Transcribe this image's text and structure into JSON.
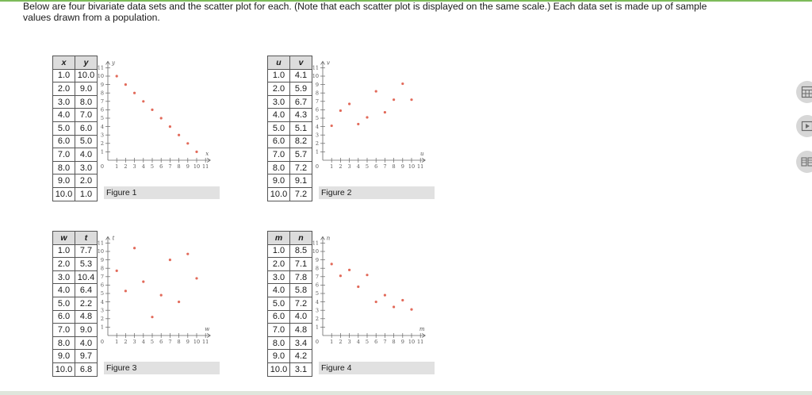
{
  "intro": {
    "line1": "Below are four bivariate data sets and the scatter plot for each. (Note that each scatter plot is displayed on the same scale.) Each data set is made up of sample",
    "line2": "values drawn from a population."
  },
  "colors": {
    "point": "#e26a5a",
    "axis": "#666666",
    "header_bg": "#dcdcdc",
    "caption_bg": "#e1e1e1",
    "accent_bar": "#7dbb5a"
  },
  "tables": [
    {
      "h1": "x",
      "h2": "y",
      "rows": [
        [
          "1.0",
          "10.0"
        ],
        [
          "2.0",
          "9.0"
        ],
        [
          "3.0",
          "8.0"
        ],
        [
          "4.0",
          "7.0"
        ],
        [
          "5.0",
          "6.0"
        ],
        [
          "6.0",
          "5.0"
        ],
        [
          "7.0",
          "4.0"
        ],
        [
          "8.0",
          "3.0"
        ],
        [
          "9.0",
          "2.0"
        ],
        [
          "10.0",
          "1.0"
        ]
      ]
    },
    {
      "h1": "u",
      "h2": "v",
      "rows": [
        [
          "1.0",
          "4.1"
        ],
        [
          "2.0",
          "5.9"
        ],
        [
          "3.0",
          "6.7"
        ],
        [
          "4.0",
          "4.3"
        ],
        [
          "5.0",
          "5.1"
        ],
        [
          "6.0",
          "8.2"
        ],
        [
          "7.0",
          "5.7"
        ],
        [
          "8.0",
          "7.2"
        ],
        [
          "9.0",
          "9.1"
        ],
        [
          "10.0",
          "7.2"
        ]
      ]
    },
    {
      "h1": "w",
      "h2": "t",
      "rows": [
        [
          "1.0",
          "7.7"
        ],
        [
          "2.0",
          "5.3"
        ],
        [
          "3.0",
          "10.4"
        ],
        [
          "4.0",
          "6.4"
        ],
        [
          "5.0",
          "2.2"
        ],
        [
          "6.0",
          "4.8"
        ],
        [
          "7.0",
          "9.0"
        ],
        [
          "8.0",
          "4.0"
        ],
        [
          "9.0",
          "9.7"
        ],
        [
          "10.0",
          "6.8"
        ]
      ]
    },
    {
      "h1": "m",
      "h2": "n",
      "rows": [
        [
          "1.0",
          "8.5"
        ],
        [
          "2.0",
          "7.1"
        ],
        [
          "3.0",
          "7.8"
        ],
        [
          "4.0",
          "5.8"
        ],
        [
          "5.0",
          "7.2"
        ],
        [
          "6.0",
          "4.0"
        ],
        [
          "7.0",
          "4.8"
        ],
        [
          "8.0",
          "3.4"
        ],
        [
          "9.0",
          "4.2"
        ],
        [
          "10.0",
          "3.1"
        ]
      ]
    }
  ],
  "figures": [
    {
      "caption": "Figure 1"
    },
    {
      "caption": "Figure 2"
    },
    {
      "caption": "Figure 3"
    },
    {
      "caption": "Figure 4"
    }
  ],
  "side_tools": [
    {
      "icon": "calculator-icon"
    },
    {
      "icon": "play-icon"
    },
    {
      "icon": "data-table-icon"
    }
  ],
  "chart_data": [
    {
      "type": "scatter",
      "xlabel": "x",
      "ylabel": "y",
      "xlim": [
        0,
        11
      ],
      "ylim": [
        0,
        11
      ],
      "x_ticks": [
        "0",
        "1",
        "2",
        "3",
        "4",
        "5",
        "6",
        "7",
        "8",
        "9",
        "10",
        "11"
      ],
      "y_ticks": [
        "1",
        "2",
        "3",
        "4",
        "5",
        "6",
        "7",
        "8",
        "9",
        "10",
        "11"
      ],
      "x": [
        1,
        2,
        3,
        4,
        5,
        6,
        7,
        8,
        9,
        10
      ],
      "y": [
        10,
        9,
        8,
        7,
        6,
        5,
        4,
        3,
        2,
        1
      ]
    },
    {
      "type": "scatter",
      "xlabel": "u",
      "ylabel": "v",
      "xlim": [
        0,
        11
      ],
      "ylim": [
        0,
        11
      ],
      "x_ticks": [
        "0",
        "1",
        "2",
        "3",
        "4",
        "5",
        "6",
        "7",
        "8",
        "9",
        "10",
        "11"
      ],
      "y_ticks": [
        "1",
        "2",
        "3",
        "4",
        "5",
        "6",
        "7",
        "8",
        "9",
        "10",
        "11"
      ],
      "x": [
        1,
        2,
        3,
        4,
        5,
        6,
        7,
        8,
        9,
        10
      ],
      "y": [
        4.1,
        5.9,
        6.7,
        4.3,
        5.1,
        8.2,
        5.7,
        7.2,
        9.1,
        7.2
      ]
    },
    {
      "type": "scatter",
      "xlabel": "w",
      "ylabel": "t",
      "xlim": [
        0,
        11
      ],
      "ylim": [
        0,
        11
      ],
      "x_ticks": [
        "0",
        "1",
        "2",
        "3",
        "4",
        "5",
        "6",
        "7",
        "8",
        "9",
        "10",
        "11"
      ],
      "y_ticks": [
        "1",
        "2",
        "3",
        "4",
        "5",
        "6",
        "7",
        "8",
        "9",
        "10",
        "11"
      ],
      "x": [
        1,
        2,
        3,
        4,
        5,
        6,
        7,
        8,
        9,
        10
      ],
      "y": [
        7.7,
        5.3,
        10.4,
        6.4,
        2.2,
        4.8,
        9.0,
        4.0,
        9.7,
        6.8
      ]
    },
    {
      "type": "scatter",
      "xlabel": "m",
      "ylabel": "n",
      "xlim": [
        0,
        11
      ],
      "ylim": [
        0,
        11
      ],
      "x_ticks": [
        "0",
        "1",
        "2",
        "3",
        "4",
        "5",
        "6",
        "7",
        "8",
        "9",
        "10",
        "11"
      ],
      "y_ticks": [
        "1",
        "2",
        "3",
        "4",
        "5",
        "6",
        "7",
        "8",
        "9",
        "10",
        "11"
      ],
      "x": [
        1,
        2,
        3,
        4,
        5,
        6,
        7,
        8,
        9,
        10
      ],
      "y": [
        8.5,
        7.1,
        7.8,
        5.8,
        7.2,
        4.0,
        4.8,
        3.4,
        4.2,
        3.1
      ]
    }
  ]
}
